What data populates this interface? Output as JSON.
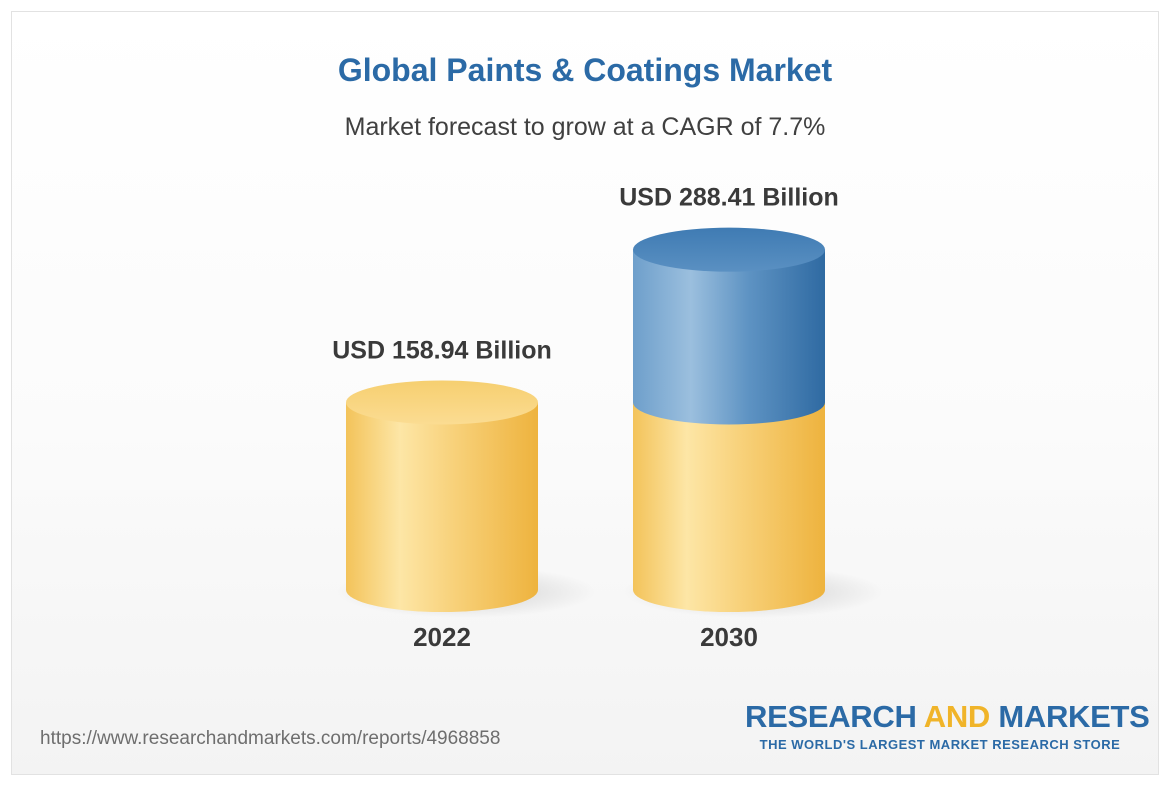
{
  "colors": {
    "title": "#2b6aa6",
    "cylinder_base": "#f2c14e",
    "cylinder_growth": "#4e89bd",
    "brand_accent": "#f0b429"
  },
  "chart_data": {
    "type": "bar",
    "style": "3d-cylinder",
    "title": "Global Paints & Coatings Market",
    "subtitle": "Market forecast to grow at a CAGR of 7.7%",
    "categories": [
      "2022",
      "2030"
    ],
    "values": [
      158.94,
      288.41
    ],
    "value_labels": [
      "USD 158.94 Billion",
      "USD 288.41 Billion"
    ],
    "ylim": [
      0,
      300
    ],
    "grid": false,
    "legend": "none"
  },
  "footer": {
    "source_url": "https://www.researchandmarkets.com/reports/4968858",
    "brand_part1": "RESEARCH",
    "brand_part2": "AND",
    "brand_part3": "MARKETS",
    "tagline": "THE WORLD'S LARGEST MARKET RESEARCH STORE"
  }
}
